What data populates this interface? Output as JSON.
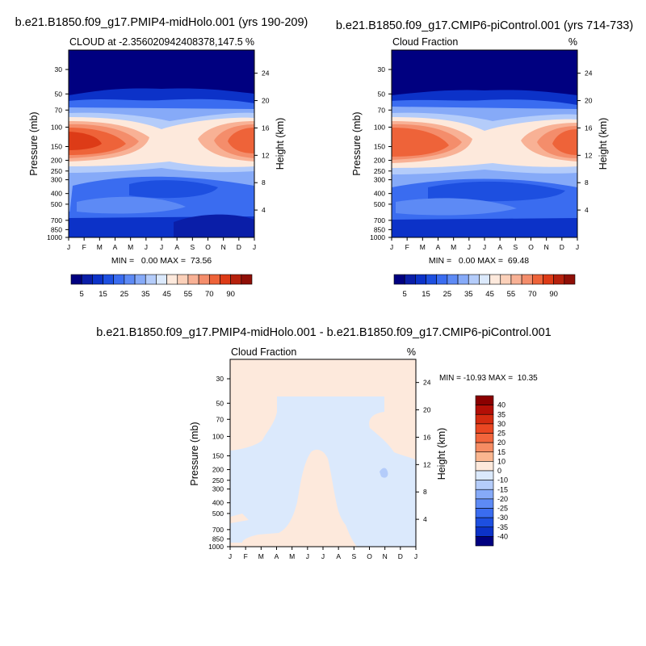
{
  "chart_data": [
    {
      "type": "heatmap",
      "title": "b.e21.B1850.f09_g17.PMIP4-midHolo.001 (yrs 190-209)",
      "subtitle_left": "CLOUD at -2.356020942408378,147.5",
      "subtitle_right": "%",
      "ylabel_left": "Pressure (mb)",
      "ylabel_right": "Height (km)",
      "x_ticks": [
        "J",
        "F",
        "M",
        "A",
        "M",
        "J",
        "J",
        "A",
        "S",
        "O",
        "N",
        "D",
        "J"
      ],
      "pressure_ticks": [
        30,
        50,
        70,
        100,
        150,
        200,
        250,
        300,
        400,
        500,
        700,
        850,
        1000
      ],
      "height_ticks": [
        24,
        20,
        16,
        12,
        8,
        4
      ],
      "stats": "MIN =   0.00 MAX =  73.56",
      "colorbar_labels": [
        "5",
        "15",
        "25",
        "35",
        "45",
        "55",
        "70",
        "90"
      ]
    },
    {
      "type": "heatmap",
      "title": "b.e21.B1850.f09_g17.CMIP6-piControl.001 (yrs 714-733)",
      "subtitle_left": "Cloud Fraction",
      "subtitle_right": "%",
      "ylabel_left": "Pressure (mb)",
      "ylabel_right": "Height (km)",
      "x_ticks": [
        "J",
        "F",
        "M",
        "A",
        "M",
        "J",
        "J",
        "A",
        "S",
        "O",
        "N",
        "D",
        "J"
      ],
      "pressure_ticks": [
        30,
        50,
        70,
        100,
        150,
        200,
        250,
        300,
        400,
        500,
        700,
        850,
        1000
      ],
      "height_ticks": [
        24,
        20,
        16,
        12,
        8,
        4
      ],
      "stats": "MIN =   0.00 MAX =  69.48",
      "colorbar_labels": [
        "5",
        "15",
        "25",
        "35",
        "45",
        "55",
        "70",
        "90"
      ]
    },
    {
      "type": "heatmap",
      "title": "b.e21.B1850.f09_g17.PMIP4-midHolo.001 - b.e21.B1850.f09_g17.CMIP6-piControl.001",
      "subtitle_left": "Cloud Fraction",
      "subtitle_right": "%",
      "ylabel_left": "Pressure (mb)",
      "ylabel_right": "Height (km)",
      "x_ticks": [
        "J",
        "F",
        "M",
        "A",
        "M",
        "J",
        "J",
        "A",
        "S",
        "O",
        "N",
        "D",
        "J"
      ],
      "pressure_ticks": [
        30,
        50,
        70,
        100,
        150,
        200,
        250,
        300,
        400,
        500,
        700,
        850,
        1000
      ],
      "height_ticks": [
        24,
        20,
        16,
        12,
        8,
        4
      ],
      "stats": "MIN = -10.93 MAX =  10.35",
      "colorbar_labels": [
        "40",
        "35",
        "30",
        "25",
        "20",
        "15",
        "10",
        "0",
        "-10",
        "-15",
        "-20",
        "-25",
        "-30",
        "-35",
        "-40"
      ]
    }
  ],
  "colors": {
    "abs_scale": [
      "#000080",
      "#0a1ea8",
      "#0c32c8",
      "#1d4fe0",
      "#3a6cf0",
      "#5d8af5",
      "#86aaf8",
      "#b4ccfa",
      "#dbe9fc",
      "#fde9dc",
      "#fbd0b9",
      "#f8b195",
      "#f48d6b",
      "#ee6339",
      "#dd3b17",
      "#b6210d",
      "#8f0f07"
    ],
    "diff_scale": [
      "#8b0000",
      "#b30f06",
      "#d42b10",
      "#ea4722",
      "#f2653c",
      "#f68c63",
      "#fab690",
      "#fde9dc",
      "#dbe9fc",
      "#b4ccfa",
      "#86aaf8",
      "#5d8af5",
      "#3a6cf0",
      "#1d4fe0",
      "#0c32c8",
      "#000080"
    ]
  }
}
